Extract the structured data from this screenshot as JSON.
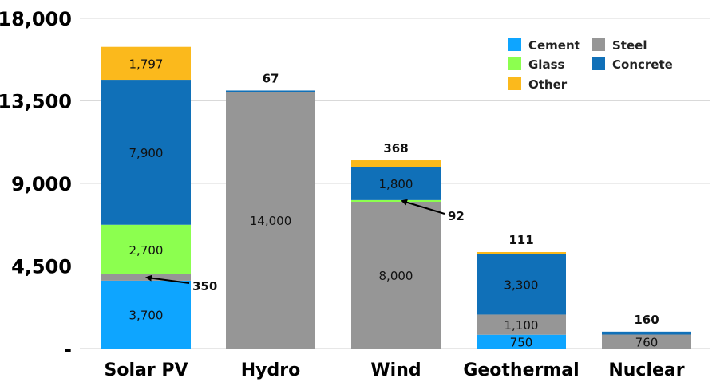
{
  "chart_data": {
    "type": "bar",
    "stacked": true,
    "categories": [
      "Solar PV",
      "Hydro",
      "Wind",
      "Geothermal",
      "Nuclear"
    ],
    "ylim": [
      0,
      18000
    ],
    "yticks": [
      0,
      4500,
      9000,
      13500,
      18000
    ],
    "ytick_labels": [
      "-",
      "4,500",
      "9,000",
      "13,500",
      "18,000"
    ],
    "grid": true,
    "legend_position": "top-right",
    "series": [
      {
        "name": "Cement",
        "color": "#0ea5ff",
        "values": [
          3700,
          0,
          0,
          750,
          0
        ],
        "labels": [
          "3,700",
          "",
          "",
          "750",
          ""
        ]
      },
      {
        "name": "Steel",
        "color": "#969696",
        "values": [
          350,
          14000,
          8000,
          1100,
          760
        ],
        "labels": [
          "",
          "14,000",
          "8,000",
          "1,100",
          "760"
        ]
      },
      {
        "name": "Glass",
        "color": "#8cff4f",
        "values": [
          2700,
          0,
          92,
          0,
          0
        ],
        "labels": [
          "2,700",
          "",
          "",
          "",
          ""
        ]
      },
      {
        "name": "Concrete",
        "color": "#1070b8",
        "values": [
          7900,
          67,
          1800,
          3300,
          160
        ],
        "labels": [
          "7,900",
          "",
          "1,800",
          "3,300",
          ""
        ]
      },
      {
        "name": "Other",
        "color": "#fbb91c",
        "values": [
          1797,
          0,
          368,
          111,
          0
        ],
        "labels": [
          "1,797",
          "",
          "",
          "",
          ""
        ]
      }
    ],
    "top_labels": [
      "",
      "67",
      "368",
      "111",
      "160"
    ],
    "callouts": [
      {
        "category": "Solar PV",
        "series": "Steel",
        "text": "350"
      },
      {
        "category": "Wind",
        "series": "Glass",
        "text": "92"
      }
    ]
  }
}
